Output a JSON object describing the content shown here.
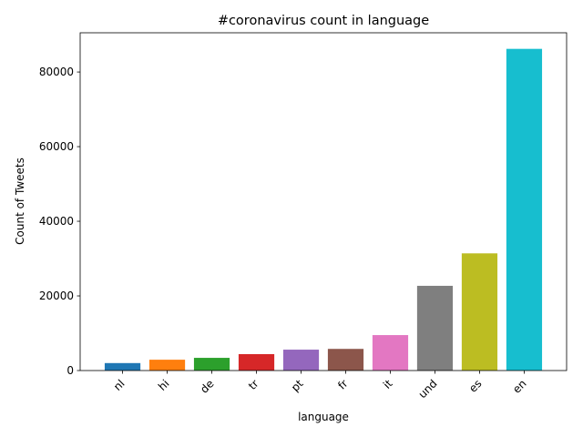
{
  "chart_data": {
    "type": "bar",
    "title": "#coronavirus count in language",
    "xlabel": "language",
    "ylabel": "Count of Tweets",
    "categories": [
      "nl",
      "hi",
      "de",
      "tr",
      "pt",
      "fr",
      "it",
      "und",
      "es",
      "en"
    ],
    "values": [
      2000,
      2900,
      3400,
      4400,
      5600,
      5800,
      9500,
      22700,
      31400,
      86200
    ],
    "colors": [
      "#1f77b4",
      "#ff7f0e",
      "#2ca02c",
      "#d62728",
      "#9467bd",
      "#8c564b",
      "#e377c2",
      "#7f7f7f",
      "#bcbd22",
      "#17becf"
    ],
    "ylim": [
      0,
      90510
    ],
    "yticks": [
      0,
      20000,
      40000,
      60000,
      80000
    ],
    "ytick_labels": [
      "0",
      "20000",
      "40000",
      "60000",
      "80000"
    ],
    "xtick_rotation": 45,
    "grid": false,
    "legend": "none"
  }
}
